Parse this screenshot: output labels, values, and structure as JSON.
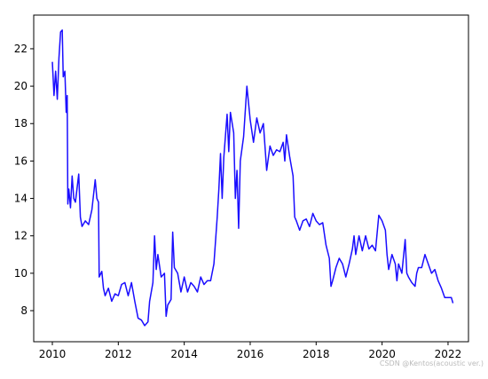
{
  "chart_data": {
    "type": "line",
    "x": [
      2010.0,
      2010.05,
      2010.1,
      2010.15,
      2010.2,
      2010.25,
      2010.3,
      2010.33,
      2010.38,
      2010.42,
      2010.45,
      2010.47,
      2010.5,
      2010.55,
      2010.6,
      2010.65,
      2010.7,
      2010.8,
      2010.85,
      2010.9,
      2011.0,
      2011.1,
      2011.2,
      2011.3,
      2011.35,
      2011.4,
      2011.42,
      2011.5,
      2011.55,
      2011.6,
      2011.7,
      2011.8,
      2011.9,
      2012.0,
      2012.1,
      2012.2,
      2012.3,
      2012.4,
      2012.5,
      2012.6,
      2012.7,
      2012.8,
      2012.9,
      2012.95,
      2013.05,
      2013.1,
      2013.15,
      2013.2,
      2013.3,
      2013.4,
      2013.45,
      2013.5,
      2013.6,
      2013.65,
      2013.7,
      2013.8,
      2013.9,
      2014.0,
      2014.1,
      2014.2,
      2014.3,
      2014.4,
      2014.5,
      2014.6,
      2014.7,
      2014.8,
      2014.9,
      2015.0,
      2015.05,
      2015.1,
      2015.15,
      2015.2,
      2015.3,
      2015.35,
      2015.4,
      2015.5,
      2015.55,
      2015.6,
      2015.65,
      2015.7,
      2015.8,
      2015.9,
      2016.0,
      2016.1,
      2016.2,
      2016.3,
      2016.4,
      2016.5,
      2016.6,
      2016.7,
      2016.8,
      2016.9,
      2017.0,
      2017.05,
      2017.1,
      2017.2,
      2017.3,
      2017.35,
      2017.4,
      2017.5,
      2017.6,
      2017.7,
      2017.8,
      2017.9,
      2018.0,
      2018.1,
      2018.2,
      2018.3,
      2018.4,
      2018.45,
      2018.5,
      2018.6,
      2018.7,
      2018.8,
      2018.9,
      2019.0,
      2019.1,
      2019.15,
      2019.2,
      2019.3,
      2019.4,
      2019.5,
      2019.6,
      2019.7,
      2019.8,
      2019.9,
      2020.0,
      2020.1,
      2020.15,
      2020.2,
      2020.3,
      2020.4,
      2020.45,
      2020.5,
      2020.6,
      2020.7,
      2020.75,
      2020.8,
      2020.9,
      2021.0,
      2021.05,
      2021.1,
      2021.2,
      2021.3,
      2021.4,
      2021.5,
      2021.6,
      2021.7,
      2021.8,
      2021.9,
      2022.0,
      2022.1,
      2022.15
    ],
    "series": [
      {
        "name": null,
        "color": "#1a0dff",
        "values": [
          21.3,
          19.5,
          20.8,
          19.3,
          21.5,
          22.9,
          23.0,
          20.5,
          20.8,
          18.6,
          19.5,
          13.7,
          14.5,
          13.5,
          15.2,
          14.0,
          13.8,
          15.3,
          13.0,
          12.5,
          12.8,
          12.6,
          13.4,
          15.0,
          14.0,
          13.8,
          9.8,
          10.1,
          9.2,
          8.8,
          9.2,
          8.5,
          8.9,
          8.8,
          9.4,
          9.5,
          8.8,
          9.5,
          8.5,
          7.6,
          7.5,
          7.2,
          7.4,
          8.5,
          9.5,
          12.0,
          10.2,
          11.0,
          9.8,
          10.0,
          7.7,
          8.3,
          8.6,
          12.2,
          10.3,
          10.0,
          9.0,
          9.8,
          9.0,
          9.5,
          9.3,
          9.0,
          9.8,
          9.4,
          9.6,
          9.6,
          10.5,
          13.0,
          14.5,
          16.4,
          14.0,
          16.2,
          18.5,
          16.5,
          18.6,
          17.5,
          14.0,
          15.5,
          12.4,
          16.0,
          17.3,
          20.0,
          18.2,
          17.0,
          18.3,
          17.5,
          18.0,
          15.5,
          16.8,
          16.3,
          16.6,
          16.5,
          17.0,
          16.0,
          17.4,
          16.2,
          15.2,
          13.0,
          12.8,
          12.3,
          12.8,
          12.9,
          12.5,
          13.2,
          12.8,
          12.6,
          12.7,
          11.5,
          10.8,
          9.3,
          9.6,
          10.3,
          10.8,
          10.5,
          9.8,
          10.5,
          11.3,
          12.0,
          11.0,
          12.0,
          11.2,
          12.0,
          11.3,
          11.5,
          11.2,
          13.1,
          12.8,
          12.3,
          11.0,
          10.2,
          11.0,
          10.5,
          9.6,
          10.5,
          10.0,
          11.8,
          10.0,
          9.8,
          9.5,
          9.3,
          10.0,
          10.3,
          10.3,
          11.0,
          10.5,
          10.0,
          10.2,
          9.6,
          9.2,
          8.7,
          8.7,
          8.7,
          8.4
        ]
      }
    ],
    "xlim": [
      2009.435,
      2022.62
    ],
    "ylim": [
      6.34,
      23.8
    ],
    "xticks": [
      2010,
      2012,
      2014,
      2016,
      2018,
      2020,
      2022
    ],
    "yticks": [
      8,
      10,
      12,
      14,
      16,
      18,
      20,
      22
    ],
    "annotation": "CSDN @Kentos(acoustic ver.)"
  }
}
